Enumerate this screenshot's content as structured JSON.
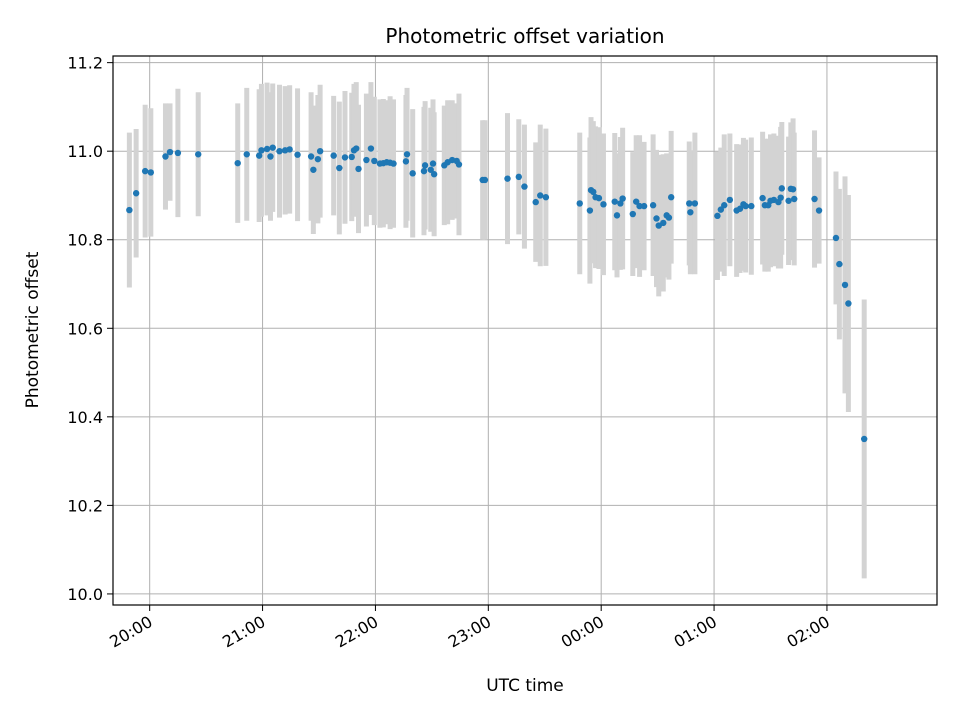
{
  "chart_data": {
    "type": "scatter",
    "title": "Photometric offset variation",
    "xlabel": "UTC time",
    "ylabel": "Photometric offset",
    "x_unit": "hours",
    "xlim": [
      19.675,
      26.975
    ],
    "ylim": [
      9.975,
      11.215
    ],
    "xticks": [
      20,
      21,
      22,
      23,
      24,
      25,
      26
    ],
    "xtick_labels": [
      "20:00",
      "21:00",
      "22:00",
      "23:00",
      "00:00",
      "01:00",
      "02:00"
    ],
    "yticks": [
      10.0,
      10.2,
      10.4,
      10.6,
      10.8,
      11.0,
      11.2
    ],
    "ytick_labels": [
      "10.0",
      "10.2",
      "10.4",
      "10.6",
      "10.8",
      "11.0",
      "11.2"
    ],
    "grid": true,
    "point_color": "#1f77b4",
    "errorbar_color": "#d3d3d3",
    "points": [
      [
        19.82,
        10.867,
        0.175
      ],
      [
        19.88,
        10.905,
        0.145
      ],
      [
        19.96,
        10.955,
        0.15
      ],
      [
        20.01,
        10.952,
        0.145
      ],
      [
        20.14,
        10.988,
        0.12
      ],
      [
        20.18,
        10.998,
        0.11
      ],
      [
        20.25,
        10.996,
        0.145
      ],
      [
        20.43,
        10.993,
        0.14
      ],
      [
        20.78,
        10.973,
        0.135
      ],
      [
        20.86,
        10.993,
        0.15
      ],
      [
        20.97,
        10.99,
        0.15
      ],
      [
        20.99,
        11.002,
        0.15
      ],
      [
        21.04,
        11.005,
        0.15
      ],
      [
        21.07,
        10.988,
        0.145
      ],
      [
        21.09,
        11.008,
        0.145
      ],
      [
        21.15,
        11.0,
        0.15
      ],
      [
        21.2,
        11.002,
        0.145
      ],
      [
        21.24,
        11.004,
        0.145
      ],
      [
        21.31,
        10.992,
        0.15
      ],
      [
        21.43,
        10.988,
        0.145
      ],
      [
        21.45,
        10.958,
        0.145
      ],
      [
        21.49,
        10.982,
        0.145
      ],
      [
        21.51,
        11.0,
        0.15
      ],
      [
        21.63,
        10.99,
        0.135
      ],
      [
        21.68,
        10.962,
        0.15
      ],
      [
        21.73,
        10.986,
        0.15
      ],
      [
        21.79,
        10.987,
        0.145
      ],
      [
        21.81,
        11.002,
        0.15
      ],
      [
        21.83,
        11.006,
        0.15
      ],
      [
        21.85,
        10.96,
        0.145
      ],
      [
        21.92,
        10.98,
        0.15
      ],
      [
        21.96,
        11.006,
        0.15
      ],
      [
        21.99,
        10.978,
        0.145
      ],
      [
        22.04,
        10.972,
        0.145
      ],
      [
        22.07,
        10.973,
        0.145
      ],
      [
        22.1,
        10.975,
        0.14
      ],
      [
        22.13,
        10.974,
        0.15
      ],
      [
        22.16,
        10.972,
        0.145
      ],
      [
        22.27,
        10.977,
        0.15
      ],
      [
        22.28,
        10.993,
        0.15
      ],
      [
        22.33,
        10.95,
        0.145
      ],
      [
        22.43,
        10.955,
        0.145
      ],
      [
        22.44,
        10.968,
        0.145
      ],
      [
        22.49,
        10.958,
        0.14
      ],
      [
        22.51,
        10.972,
        0.145
      ],
      [
        22.52,
        10.948,
        0.14
      ],
      [
        22.61,
        10.968,
        0.135
      ],
      [
        22.64,
        10.975,
        0.14
      ],
      [
        22.68,
        10.98,
        0.135
      ],
      [
        22.72,
        10.978,
        0.13
      ],
      [
        22.74,
        10.97,
        0.16
      ],
      [
        22.95,
        10.935,
        0.135
      ],
      [
        22.97,
        10.935,
        0.135
      ],
      [
        23.17,
        10.938,
        0.148
      ],
      [
        23.27,
        10.942,
        0.13
      ],
      [
        23.32,
        10.92,
        0.14
      ],
      [
        23.42,
        10.885,
        0.135
      ],
      [
        23.46,
        10.9,
        0.16
      ],
      [
        23.51,
        10.896,
        0.155
      ],
      [
        23.81,
        10.882,
        0.16
      ],
      [
        23.9,
        10.866,
        0.165
      ],
      [
        23.91,
        10.912,
        0.165
      ],
      [
        23.93,
        10.908,
        0.16
      ],
      [
        23.95,
        10.896,
        0.16
      ],
      [
        23.98,
        10.894,
        0.16
      ],
      [
        24.02,
        10.88,
        0.16
      ],
      [
        24.12,
        10.886,
        0.155
      ],
      [
        24.14,
        10.855,
        0.14
      ],
      [
        24.17,
        10.882,
        0.15
      ],
      [
        24.19,
        10.893,
        0.16
      ],
      [
        24.28,
        10.858,
        0.14
      ],
      [
        24.31,
        10.886,
        0.15
      ],
      [
        24.34,
        10.876,
        0.16
      ],
      [
        24.38,
        10.876,
        0.145
      ],
      [
        24.46,
        10.878,
        0.16
      ],
      [
        24.49,
        10.848,
        0.155
      ],
      [
        24.51,
        10.832,
        0.16
      ],
      [
        24.55,
        10.838,
        0.155
      ],
      [
        24.58,
        10.855,
        0.14
      ],
      [
        24.6,
        10.85,
        0.14
      ],
      [
        24.62,
        10.896,
        0.15
      ],
      [
        24.78,
        10.882,
        0.14
      ],
      [
        24.79,
        10.862,
        0.14
      ],
      [
        24.83,
        10.882,
        0.16
      ],
      [
        25.03,
        10.854,
        0.145
      ],
      [
        25.06,
        10.868,
        0.14
      ],
      [
        25.09,
        10.878,
        0.16
      ],
      [
        25.14,
        10.89,
        0.15
      ],
      [
        25.2,
        10.866,
        0.15
      ],
      [
        25.23,
        10.87,
        0.145
      ],
      [
        25.26,
        10.88,
        0.15
      ],
      [
        25.28,
        10.876,
        0.15
      ],
      [
        25.33,
        10.876,
        0.155
      ],
      [
        25.43,
        10.894,
        0.15
      ],
      [
        25.45,
        10.878,
        0.15
      ],
      [
        25.48,
        10.878,
        0.15
      ],
      [
        25.5,
        10.888,
        0.15
      ],
      [
        25.53,
        10.89,
        0.15
      ],
      [
        25.57,
        10.885,
        0.15
      ],
      [
        25.59,
        10.895,
        0.16
      ],
      [
        25.6,
        10.916,
        0.15
      ],
      [
        25.66,
        10.888,
        0.145
      ],
      [
        25.68,
        10.915,
        0.15
      ],
      [
        25.7,
        10.914,
        0.16
      ],
      [
        25.71,
        10.892,
        0.15
      ],
      [
        25.89,
        10.892,
        0.155
      ],
      [
        25.93,
        10.866,
        0.12
      ],
      [
        26.08,
        10.804,
        0.15
      ],
      [
        26.11,
        10.745,
        0.17
      ],
      [
        26.16,
        10.698,
        0.245
      ],
      [
        26.19,
        10.656,
        0.245
      ],
      [
        26.33,
        10.35,
        0.315
      ]
    ]
  }
}
